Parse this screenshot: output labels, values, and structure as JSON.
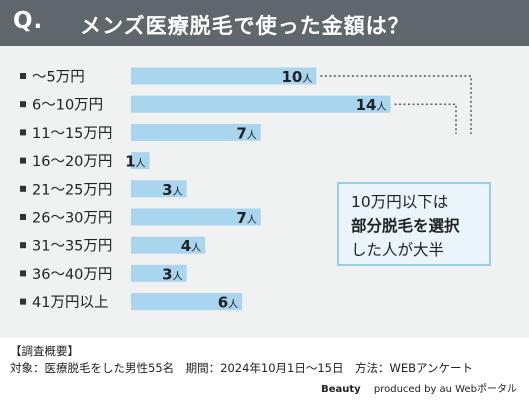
{
  "header": {
    "q_mark": "Q.",
    "title": "メンズ医療脱毛で使った金額は？"
  },
  "callout": {
    "line1": "10万円以下は",
    "line2": "部分脱毛を選択",
    "line3": "した人が大半"
  },
  "footer": {
    "heading": "【調査概要】",
    "details": "対象：医療脱毛をした男性55名　期間：2024年10月1日〜15日　方法：WEBアンケート"
  },
  "credit": {
    "brand": "Beauty",
    "produced": "produced by au Webポータル"
  },
  "colors": {
    "bar": "#a9d5ef",
    "header": "#5f676c",
    "panel": "#f0f1f1",
    "callout_border": "#9ccbe6"
  },
  "chart_data": {
    "type": "bar",
    "orientation": "horizontal",
    "unit": "人",
    "categories": [
      "〜5万円",
      "6〜10万円",
      "11〜15万円",
      "16〜20万円",
      "21〜25万円",
      "26〜30万円",
      "31〜35万円",
      "36〜40万円",
      "41万円以上"
    ],
    "values": [
      10,
      14,
      7,
      1,
      3,
      7,
      4,
      3,
      6
    ],
    "xlim": [
      0,
      14
    ],
    "grid": false,
    "legend": "none"
  }
}
